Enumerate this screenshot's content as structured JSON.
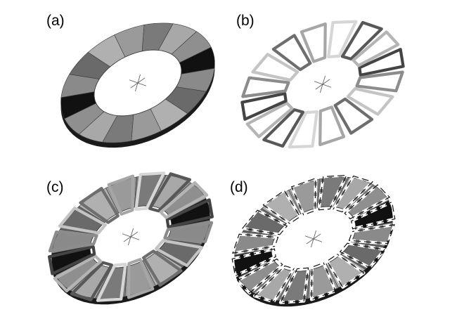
{
  "figure": {
    "panels": [
      {
        "id": "a",
        "label": "(a)",
        "style": "segments"
      },
      {
        "id": "b",
        "label": "(b)",
        "style": "coils"
      },
      {
        "id": "c",
        "label": "(c)",
        "style": "segments-with-coils"
      },
      {
        "id": "d",
        "label": "(d)",
        "style": "segments-with-dashed-coils"
      }
    ],
    "segment_count": 16,
    "segment_shades": [
      "#111111",
      "#8a8a8a",
      "#6a6a6a",
      "#b0b0b0",
      "#9a9a9a",
      "#7a7a7a",
      "#a8a8a8",
      "#8f8f8f"
    ],
    "coil_count": 16,
    "coil_shades": [
      "#444444",
      "#8c8c8c",
      "#c4c4c4",
      "#6e6e6e",
      "#a6a6a6",
      "#d6d6d6",
      "#585858",
      "#b4b4b4"
    ]
  }
}
